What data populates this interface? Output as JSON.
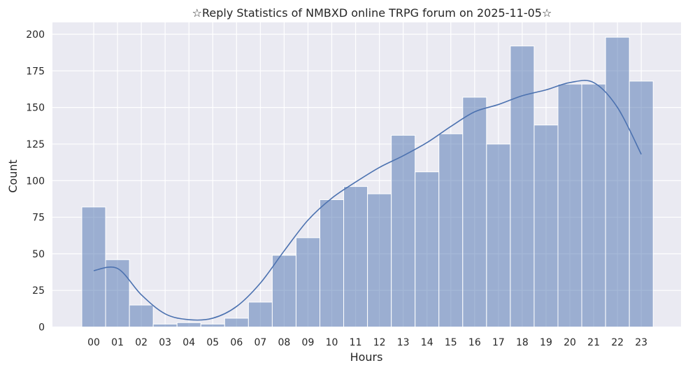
{
  "chart_data": {
    "type": "bar",
    "title": "☆Reply Statistics of NMBXD online TRPG forum on 2025-11-05☆",
    "xlabel": "Hours",
    "ylabel": "Count",
    "categories": [
      "00",
      "01",
      "02",
      "03",
      "04",
      "05",
      "06",
      "07",
      "08",
      "09",
      "10",
      "11",
      "12",
      "13",
      "14",
      "15",
      "16",
      "17",
      "18",
      "19",
      "20",
      "21",
      "22",
      "23"
    ],
    "values": [
      82,
      46,
      15,
      2,
      3,
      2,
      6,
      17,
      49,
      61,
      87,
      96,
      91,
      131,
      106,
      132,
      157,
      125,
      192,
      138,
      166,
      166,
      198,
      168
    ],
    "kde": [
      38.5,
      40,
      22,
      9,
      5,
      6,
      14,
      30,
      52,
      73,
      88,
      99,
      109,
      117,
      126,
      137,
      147,
      152,
      158,
      162,
      167,
      167,
      150,
      118
    ],
    "ylim": [
      0,
      210
    ],
    "yticks": [
      0,
      25,
      50,
      75,
      100,
      125,
      150,
      175,
      200
    ],
    "grid": true,
    "colors": {
      "background": "#eaeaf2",
      "bar": "#4c72b0",
      "bar_opacity": 0.5,
      "kde_line": "#4c72b0",
      "grid": "#ffffff"
    }
  }
}
